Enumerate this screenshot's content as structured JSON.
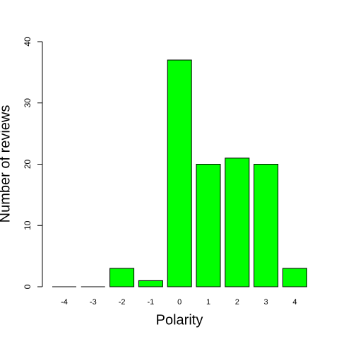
{
  "chart_data": {
    "type": "bar",
    "x_label": "Polarity",
    "y_label": "Number of reviews",
    "categories": [
      "-4",
      "-3",
      "-2",
      "-1",
      "0",
      "1",
      "2",
      "3",
      "4"
    ],
    "values": [
      0,
      0,
      3,
      1,
      37,
      20,
      21,
      20,
      3
    ],
    "color": "#00ff00",
    "ylim": [
      0,
      40
    ],
    "yticks": [
      0,
      10,
      20,
      30,
      40
    ]
  }
}
